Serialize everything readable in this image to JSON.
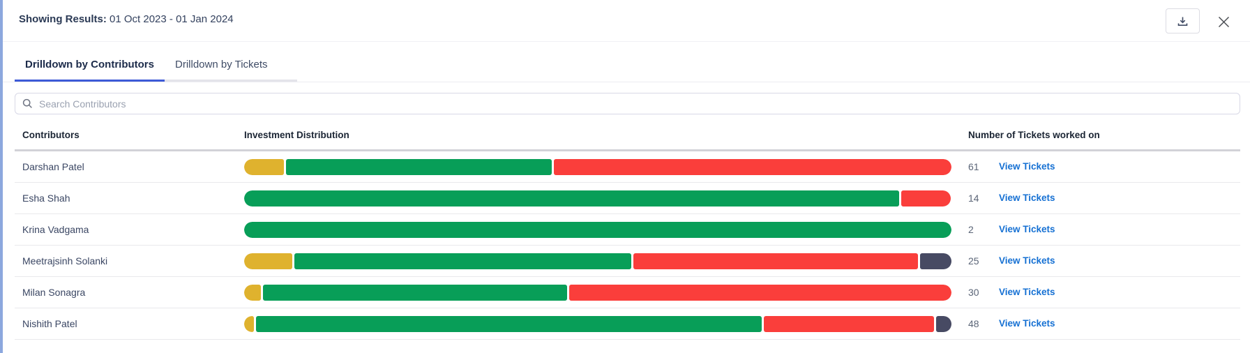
{
  "header": {
    "label": "Showing Results:",
    "date_range": " 01 Oct 2023 - 01 Jan 2024"
  },
  "tabs": [
    {
      "label": "Drilldown by Contributors",
      "active": true
    },
    {
      "label": "Drilldown by Tickets",
      "active": false
    }
  ],
  "search": {
    "placeholder": "Search Contributors",
    "icon": "search-icon"
  },
  "icons": {
    "download": "download-icon",
    "close": "close-icon"
  },
  "colors": {
    "yellow": "#dfb22e",
    "green": "#089e58",
    "red": "#fa3e3b",
    "dark": "#474a63",
    "link_blue": "#1570d3",
    "active_tab_underline": "#3d5ad7"
  },
  "table": {
    "columns": [
      "Contributors",
      "Investment Distribution",
      "Number of Tickets worked on"
    ],
    "link_label": "View Tickets",
    "rows": [
      {
        "name": "Darshan Patel",
        "tickets": "61",
        "segments": [
          {
            "color": "yellow",
            "pct": 5.8
          },
          {
            "color": "green",
            "pct": 37.8
          },
          {
            "color": "red",
            "pct": 56.4
          }
        ]
      },
      {
        "name": "Esha Shah",
        "tickets": "14",
        "segments": [
          {
            "color": "green",
            "pct": 92.8
          },
          {
            "color": "red",
            "pct": 7.2
          }
        ]
      },
      {
        "name": "Krina Vadgama",
        "tickets": "2",
        "segments": [
          {
            "color": "green",
            "pct": 100
          }
        ]
      },
      {
        "name": "Meetrajsinh Solanki",
        "tickets": "25",
        "segments": [
          {
            "color": "yellow",
            "pct": 7.0
          },
          {
            "color": "green",
            "pct": 47.8
          },
          {
            "color": "red",
            "pct": 40.5
          },
          {
            "color": "dark",
            "pct": 4.7
          }
        ]
      },
      {
        "name": "Milan Sonagra",
        "tickets": "30",
        "segments": [
          {
            "color": "yellow",
            "pct": 2.6
          },
          {
            "color": "green",
            "pct": 43.2
          },
          {
            "color": "red",
            "pct": 54.2
          }
        ]
      },
      {
        "name": "Nishith Patel",
        "tickets": "48",
        "segments": [
          {
            "color": "yellow",
            "pct": 1.6
          },
          {
            "color": "green",
            "pct": 71.7
          },
          {
            "color": "red",
            "pct": 24.2
          },
          {
            "color": "dark",
            "pct": 2.5
          }
        ]
      }
    ]
  }
}
